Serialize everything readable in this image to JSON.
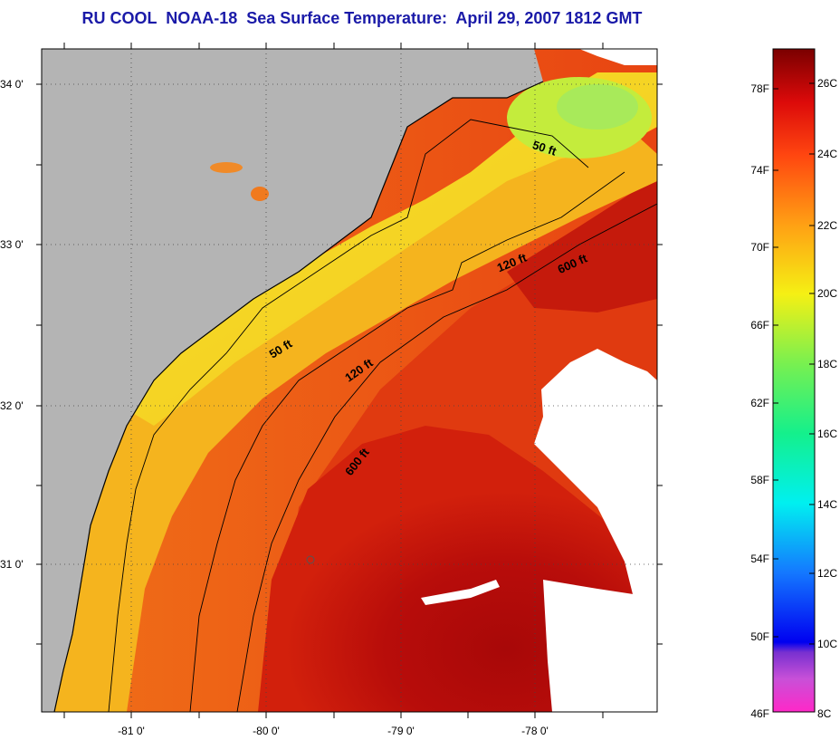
{
  "title": "RU COOL  NOAA-18  Sea Surface Temperature:  April 29, 2007 1812 GMT",
  "map": {
    "lat_labels": [
      "34 0'",
      "33 0'",
      "32 0'",
      "31 0'"
    ],
    "lon_labels": [
      "-81 0'",
      "-80 0'",
      "-79 0'",
      "-78 0'"
    ],
    "contour_labels": [
      "50 ft",
      "120 ft",
      "600 ft",
      "50 ft",
      "120 ft",
      "600 ft"
    ],
    "colors": {
      "land": "#b4b4b4",
      "cloud": "#ffffff",
      "warm_core": "#b00a0a",
      "shelf_orange": "#f05a14",
      "nearshore_yellow": "#f5e628",
      "cool_green": "#b4f050"
    }
  },
  "colorbar": {
    "fahrenheit_labels": [
      "78F",
      "74F",
      "70F",
      "66F",
      "62F",
      "58F",
      "54F",
      "50F",
      "46F"
    ],
    "celsius_labels": [
      "26C",
      "24C",
      "22C",
      "20C",
      "18C",
      "16C",
      "14C",
      "12C",
      "10C",
      "8C"
    ],
    "range_c": [
      8,
      27
    ],
    "range_f": [
      46,
      80.6
    ]
  }
}
